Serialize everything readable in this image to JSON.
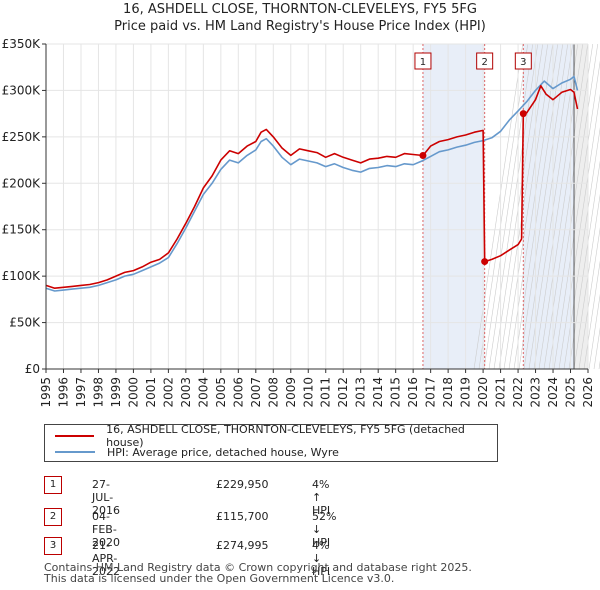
{
  "chart_data": {
    "type": "line",
    "title": "16, ASHDELL CLOSE, THORNTON-CLEVELEYS, FY5 5FG",
    "subtitle": "Price paid vs. HM Land Registry's House Price Index (HPI)",
    "xlabel": "",
    "ylabel": "",
    "xlim": [
      1995,
      2026
    ],
    "ylim": [
      0,
      350000
    ],
    "x_ticks": [
      "1995",
      "1996",
      "1997",
      "1998",
      "1999",
      "2000",
      "2001",
      "2002",
      "2003",
      "2004",
      "2005",
      "2006",
      "2007",
      "2008",
      "2009",
      "2010",
      "2011",
      "2012",
      "2013",
      "2014",
      "2015",
      "2016",
      "2017",
      "2018",
      "2019",
      "2020",
      "2021",
      "2022",
      "2023",
      "2024",
      "2025",
      "2026"
    ],
    "y_ticks": [
      {
        "value": 0,
        "label": "£0"
      },
      {
        "value": 50000,
        "label": "£50K"
      },
      {
        "value": 100000,
        "label": "£100K"
      },
      {
        "value": 150000,
        "label": "£150K"
      },
      {
        "value": 200000,
        "label": "£200K"
      },
      {
        "value": 250000,
        "label": "£250K"
      },
      {
        "value": 300000,
        "label": "£300K"
      },
      {
        "value": 350000,
        "label": "£350K"
      }
    ],
    "grid": true,
    "series": [
      {
        "name": "16, ASHDELL CLOSE, THORNTON-CLEVELEYS, FY5 5FG (detached house)",
        "color": "#cc0000",
        "x": [
          1995.0,
          1995.5,
          1996.0,
          1996.5,
          1997.0,
          1997.5,
          1998.0,
          1998.5,
          1999.0,
          1999.5,
          2000.0,
          2000.5,
          2001.0,
          2001.5,
          2002.0,
          2002.5,
          2003.0,
          2003.5,
          2004.0,
          2004.5,
          2005.0,
          2005.5,
          2006.0,
          2006.5,
          2007.0,
          2007.3,
          2007.6,
          2008.0,
          2008.5,
          2009.0,
          2009.5,
          2010.0,
          2010.5,
          2011.0,
          2011.5,
          2012.0,
          2012.5,
          2013.0,
          2013.5,
          2014.0,
          2014.5,
          2015.0,
          2015.5,
          2016.0,
          2016.56,
          2017.0,
          2017.5,
          2018.0,
          2018.5,
          2019.0,
          2019.5,
          2020.0,
          2020.09,
          2020.5,
          2021.0,
          2021.5,
          2022.0,
          2022.2,
          2022.3,
          2022.5,
          2023.0,
          2023.3,
          2023.6,
          2024.0,
          2024.5,
          2025.0,
          2025.2,
          2025.4
        ],
        "y": [
          90000,
          87000,
          88000,
          89000,
          90000,
          91000,
          93000,
          96000,
          100000,
          104000,
          106000,
          110000,
          115000,
          118000,
          125000,
          140000,
          157000,
          175000,
          195000,
          208000,
          225000,
          235000,
          232000,
          240000,
          245000,
          255000,
          258000,
          250000,
          238000,
          230000,
          237000,
          235000,
          233000,
          228000,
          232000,
          228000,
          225000,
          222000,
          226000,
          227000,
          229000,
          228000,
          232000,
          231000,
          229950,
          240000,
          245000,
          247000,
          250000,
          252000,
          255000,
          257000,
          115700,
          118000,
          122000,
          128000,
          134000,
          140000,
          274995,
          276000,
          290000,
          305000,
          296000,
          290000,
          298000,
          301000,
          298000,
          280000
        ]
      },
      {
        "name": "HPI: Average price, detached house, Wyre",
        "color": "#6699cc",
        "x": [
          1995.0,
          1995.5,
          1996.0,
          1996.5,
          1997.0,
          1997.5,
          1998.0,
          1998.5,
          1999.0,
          1999.5,
          2000.0,
          2000.5,
          2001.0,
          2001.5,
          2002.0,
          2002.5,
          2003.0,
          2003.5,
          2004.0,
          2004.5,
          2005.0,
          2005.5,
          2006.0,
          2006.5,
          2007.0,
          2007.3,
          2007.6,
          2008.0,
          2008.5,
          2009.0,
          2009.5,
          2010.0,
          2010.5,
          2011.0,
          2011.5,
          2012.0,
          2012.5,
          2013.0,
          2013.5,
          2014.0,
          2014.5,
          2015.0,
          2015.5,
          2016.0,
          2016.5,
          2017.0,
          2017.5,
          2018.0,
          2018.5,
          2019.0,
          2019.5,
          2020.0,
          2020.5,
          2021.0,
          2021.5,
          2022.0,
          2022.5,
          2023.0,
          2023.5,
          2024.0,
          2024.5,
          2025.0,
          2025.2,
          2025.4
        ],
        "y": [
          87000,
          84000,
          85000,
          86000,
          87000,
          88000,
          90000,
          93000,
          96000,
          100000,
          102000,
          106000,
          110000,
          114000,
          120000,
          135000,
          152000,
          170000,
          188000,
          200000,
          215000,
          225000,
          222000,
          230000,
          236000,
          245000,
          248000,
          240000,
          228000,
          220000,
          226000,
          224000,
          222000,
          218000,
          221000,
          217000,
          214000,
          212000,
          216000,
          217000,
          219000,
          218000,
          221000,
          220000,
          224000,
          229000,
          234000,
          236000,
          239000,
          241000,
          244000,
          246000,
          249000,
          256000,
          268000,
          278000,
          288000,
          300000,
          310000,
          302000,
          308000,
          312000,
          315000,
          300000
        ]
      }
    ],
    "transactions": [
      {
        "num": "1",
        "date": "27-JUL-2016",
        "x": 2016.56,
        "price": 229950,
        "price_label": "£229,950",
        "hpi_label": "4% ↑ HPI"
      },
      {
        "num": "2",
        "date": "04-FEB-2020",
        "x": 2020.09,
        "price": 115700,
        "price_label": "£115,700",
        "hpi_label": "52% ↓ HPI"
      },
      {
        "num": "3",
        "date": "21-APR-2022",
        "x": 2022.3,
        "price": 274995,
        "price_label": "£274,995",
        "hpi_label": "4% ↓ HPI"
      }
    ],
    "shaded_regions": [
      [
        2016.56,
        2020.09
      ],
      [
        2022.3,
        2025.2
      ]
    ],
    "future_start": 2025.2
  },
  "legend": {
    "property": "16, ASHDELL CLOSE, THORNTON-CLEVELEYS, FY5 5FG (detached house)",
    "hpi": "HPI: Average price, detached house, Wyre"
  },
  "footer": {
    "line1": "Contains HM Land Registry data © Crown copyright and database right 2025.",
    "line2": "This data is licensed under the Open Government Licence v3.0."
  }
}
